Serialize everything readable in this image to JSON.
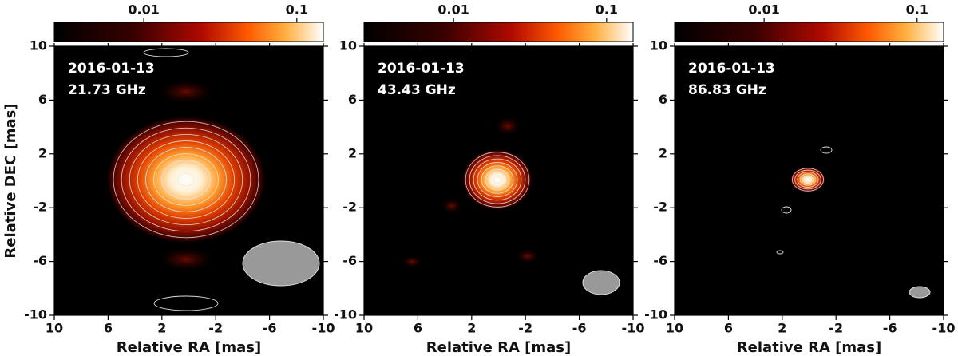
{
  "chart_data": [
    {
      "type": "image",
      "annotations": [
        "2016-01-13",
        "21.73 GHz"
      ],
      "xlabel": "Relative RA [mas]",
      "ylabel": "Relative DEC [mas]",
      "xlim": [
        10,
        -10
      ],
      "ylim": [
        -10,
        10
      ],
      "xticks": [
        10,
        6,
        2,
        -2,
        -6,
        -10
      ],
      "yticks": [
        10,
        6,
        2,
        -2,
        -6,
        -10
      ],
      "colorbar": {
        "lim": [
          0.0026,
          0.149
        ],
        "ticks": [
          0.01,
          0.1
        ],
        "log": true
      }
    },
    {
      "type": "image",
      "annotations": [
        "2016-01-13",
        "43.43 GHz"
      ],
      "xlabel": "Relative RA [mas]",
      "xlim": [
        10,
        -10
      ],
      "ylim": [
        -10,
        10
      ],
      "xticks": [
        10,
        6,
        2,
        -2,
        -6,
        -10
      ],
      "yticks": [
        10,
        6,
        2,
        -2,
        -6,
        -10
      ],
      "colorbar": {
        "lim": [
          0.0026,
          0.149
        ],
        "ticks": [
          0.01,
          0.1
        ],
        "log": true
      }
    },
    {
      "type": "image",
      "annotations": [
        "2016-01-13",
        "86.83 GHz"
      ],
      "xlabel": "Relative RA [mas]",
      "xlim": [
        10,
        -10
      ],
      "ylim": [
        -10,
        10
      ],
      "xticks": [
        10,
        6,
        2,
        -2,
        -6,
        -10
      ],
      "yticks": [
        10,
        6,
        2,
        -2,
        -6,
        -10
      ],
      "colorbar": {
        "lim": [
          0.0026,
          0.149
        ],
        "ticks": [
          0.01,
          0.1
        ],
        "log": true
      }
    }
  ]
}
